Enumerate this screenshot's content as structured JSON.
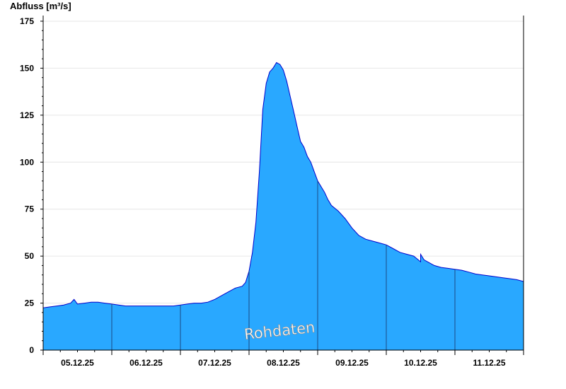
{
  "chart_data": {
    "type": "area",
    "ylabel": "Abfluss [m³/s]",
    "yticks": [
      0,
      25,
      50,
      75,
      100,
      125,
      150,
      175
    ],
    "ylim": [
      0,
      178
    ],
    "xlim": [
      0,
      7
    ],
    "xticks": [
      "05.12.25",
      "06.12.25",
      "07.12.25",
      "08.12.25",
      "09.12.25",
      "10.12.25",
      "11.12.25"
    ],
    "watermark": "Rohdaten",
    "grid": true,
    "x_unit": "days since 05.12.25 00:00",
    "series": [
      {
        "color": "#29a8ff",
        "line_color": "#0000cc",
        "x": [
          0,
          0.1,
          0.2,
          0.3,
          0.4,
          0.45,
          0.5,
          0.6,
          0.7,
          0.8,
          0.9,
          1.0,
          1.1,
          1.2,
          1.3,
          1.4,
          1.5,
          1.6,
          1.7,
          1.8,
          1.9,
          2.0,
          2.1,
          2.2,
          2.3,
          2.4,
          2.5,
          2.6,
          2.7,
          2.8,
          2.9,
          2.95,
          3.0,
          3.05,
          3.1,
          3.15,
          3.2,
          3.25,
          3.3,
          3.35,
          3.4,
          3.45,
          3.5,
          3.55,
          3.6,
          3.65,
          3.7,
          3.75,
          3.8,
          3.85,
          3.9,
          3.95,
          4.0,
          4.05,
          4.1,
          4.15,
          4.2,
          4.3,
          4.4,
          4.5,
          4.6,
          4.7,
          4.8,
          4.9,
          5.0,
          5.1,
          5.2,
          5.3,
          5.4,
          5.5,
          5.5,
          5.55,
          5.6,
          5.7,
          5.8,
          5.9,
          6.0,
          6.1,
          6.2,
          6.3,
          6.4,
          6.5,
          6.6,
          6.7,
          6.8,
          6.9,
          7.0
        ],
        "y": [
          22.5,
          23,
          23.5,
          24,
          25,
          27,
          24.5,
          25,
          25.5,
          25.5,
          25,
          24.5,
          24,
          23.5,
          23.5,
          23.5,
          23.5,
          23.5,
          23.5,
          23.5,
          23.5,
          24,
          24.5,
          25,
          25,
          25.5,
          27,
          29,
          31,
          33,
          34,
          36,
          42,
          52,
          68,
          95,
          128,
          142,
          148,
          150,
          153,
          152,
          149,
          143,
          135,
          127,
          119,
          111,
          108,
          103,
          100,
          95,
          90,
          87,
          84,
          80,
          77,
          74,
          70,
          65,
          61,
          59,
          58,
          57,
          56,
          54,
          52,
          51,
          50,
          47,
          51,
          48,
          47,
          45,
          44,
          43.5,
          43,
          42.5,
          41.5,
          40.5,
          40,
          39.5,
          39,
          38.5,
          38,
          37.5,
          36.5
        ]
      }
    ]
  }
}
